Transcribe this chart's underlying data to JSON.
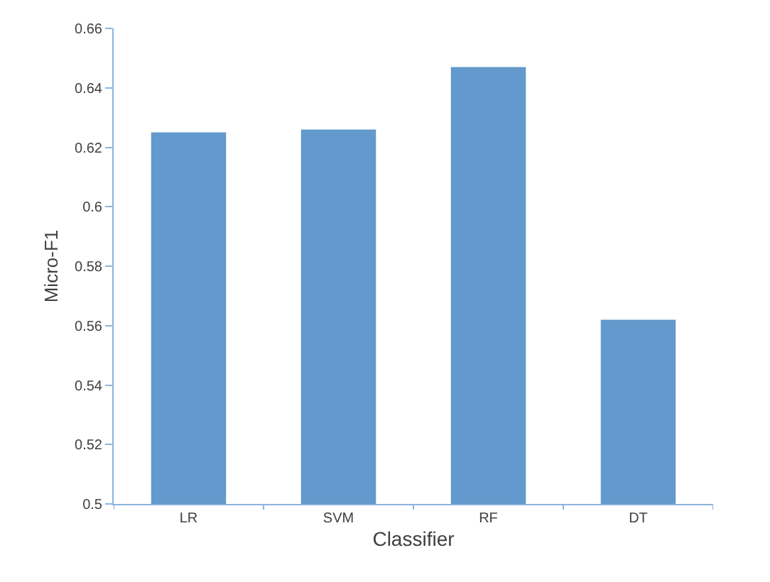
{
  "chart_data": {
    "type": "bar",
    "xlabel": "Classifier",
    "ylabel": "Micro-F1",
    "categories": [
      "LR",
      "SVM",
      "RF",
      "DT"
    ],
    "values": [
      0.625,
      0.626,
      0.647,
      0.562
    ],
    "color": "#6399cc",
    "ylim": [
      0.5,
      0.66
    ],
    "yticks": [
      0.5,
      0.52,
      0.54,
      0.56,
      0.58,
      0.6,
      0.62,
      0.64,
      0.66
    ]
  }
}
